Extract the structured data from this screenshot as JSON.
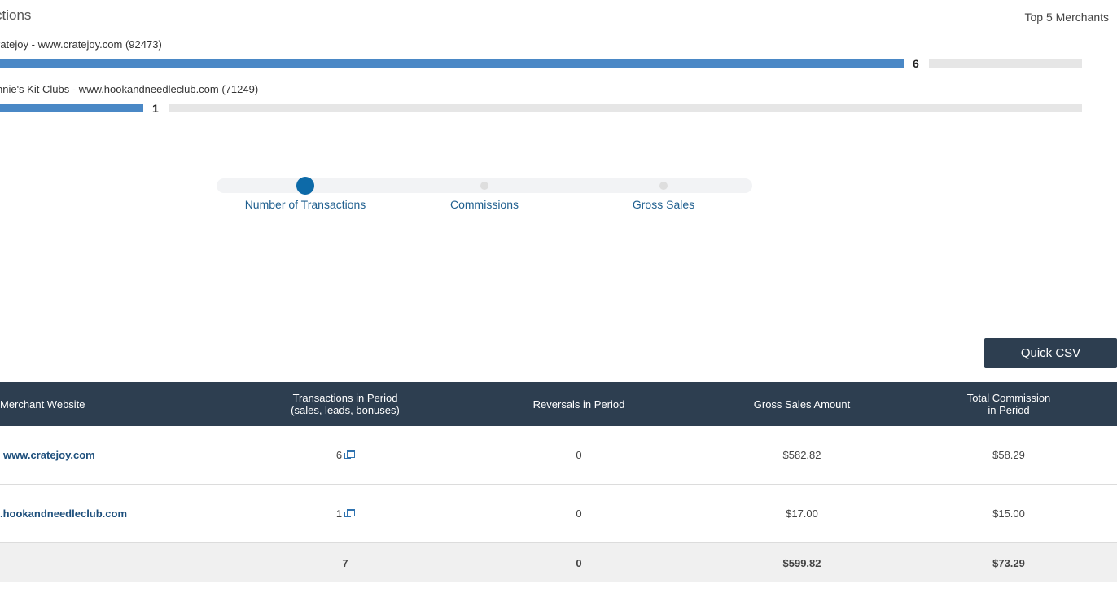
{
  "header": {
    "section_title": "ctions",
    "top_merchants_label": "Top 5 Merchants"
  },
  "bar_chart": {
    "items": [
      {
        "label": "ratejoy - www.cratejoy.com (92473)",
        "value": "6",
        "fill_fraction": 0.83
      },
      {
        "label": "nnie's Kit Clubs - www.hookandneedleclub.com (71249)",
        "value": "1",
        "fill_fraction": 0.14
      }
    ],
    "bar_color": "#4a88c6",
    "track_color": "#e6e6e6"
  },
  "metric_slider": {
    "selected": "Number of Transactions",
    "options": [
      "Number of Transactions",
      "Commissions",
      "Gross Sales"
    ]
  },
  "toolbar": {
    "quick_csv_label": "Quick CSV"
  },
  "table": {
    "headers": [
      "Merchant Website",
      "Transactions in Period\n(sales, leads, bonuses)",
      "Reversals in Period",
      "Gross Sales Amount",
      "Total Commission\nin Period"
    ],
    "rows": [
      {
        "website": "www.cratejoy.com",
        "transactions": "6",
        "reversals": "0",
        "gross_sales": "$582.82",
        "commission": "$58.29"
      },
      {
        "website": ".hookandneedleclub.com",
        "transactions": "1",
        "reversals": "0",
        "gross_sales": "$17.00",
        "commission": "$15.00"
      }
    ],
    "totals": {
      "transactions": "7",
      "reversals": "0",
      "gross_sales": "$599.82",
      "commission": "$73.29"
    },
    "header_color": "#2d3e50"
  }
}
